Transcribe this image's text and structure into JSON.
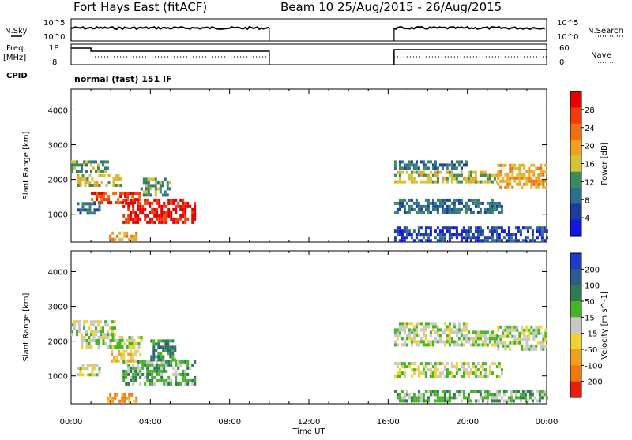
{
  "header": {
    "station": "Fort Hays East (fitACF)",
    "beam_date": "Beam 10 25/Aug/2015 - 26/Aug/2015"
  },
  "status_panels": {
    "nsky_label": "N.Sky",
    "nsky_ticks": [
      "10^5",
      "10^0"
    ],
    "nsearch_label": "N.Search",
    "nsearch_ticks": [
      "10^5",
      "10^0"
    ],
    "freq_label": "Freq.",
    "freq_unit": "[MHz]",
    "freq_ticks": [
      "18",
      "8"
    ],
    "nave_label": "Nave",
    "nave_ticks": [
      "60",
      "0"
    ],
    "cpid_label": "CPID",
    "cpid_text": "normal (fast) 151 IF"
  },
  "colors": {
    "power_scale": [
      "#1414e6",
      "#1e3c9a",
      "#2f6e8f",
      "#3c8c5a",
      "#d4c23a",
      "#f0a01e",
      "#f06e14",
      "#f03c0a",
      "#e60000"
    ],
    "velocity_scale": [
      "#1e3cc8",
      "#2f5a8c",
      "#2f7a50",
      "#46b428",
      "#c8c8c8",
      "#f0d232",
      "#f0a01e",
      "#f07814",
      "#e61e0a"
    ]
  },
  "chart_data": [
    {
      "type": "heatmap",
      "name": "power",
      "ylabel": "Slant Range [km]",
      "ylim": [
        200,
        4600
      ],
      "yticks": [
        1000,
        2000,
        3000,
        4000
      ],
      "colorbar_label": "Power [dB]",
      "colorbar_ticks": [
        "4",
        "8",
        "12",
        "16",
        "20",
        "24",
        "28"
      ],
      "regions": [
        {
          "t0": 0.0,
          "t1": 1.8,
          "r0": 2200,
          "r1": 2550,
          "level": 3
        },
        {
          "t0": 0.3,
          "t1": 2.5,
          "r0": 1800,
          "r1": 2150,
          "level": 4
        },
        {
          "t0": 1.0,
          "t1": 3.6,
          "r0": 1350,
          "r1": 1650,
          "level": 7
        },
        {
          "t0": 0.3,
          "t1": 1.4,
          "r0": 1000,
          "r1": 1350,
          "level": 2
        },
        {
          "t0": 2.6,
          "t1": 6.3,
          "r0": 800,
          "r1": 1450,
          "level": 8
        },
        {
          "t0": 3.5,
          "t1": 5.0,
          "r0": 1550,
          "r1": 2050,
          "level": 3
        },
        {
          "t0": 1.8,
          "t1": 3.3,
          "r0": 300,
          "r1": 500,
          "level": 5
        },
        {
          "t0": 16.3,
          "t1": 21.5,
          "r0": 1900,
          "r1": 2250,
          "level": 4
        },
        {
          "t0": 16.3,
          "t1": 20.0,
          "r0": 2350,
          "r1": 2550,
          "level": 2
        },
        {
          "t0": 21.5,
          "t1": 24.0,
          "r0": 1800,
          "r1": 2450,
          "level": 5
        },
        {
          "t0": 16.3,
          "t1": 21.8,
          "r0": 1000,
          "r1": 1450,
          "level": 2
        },
        {
          "t0": 16.3,
          "t1": 24.0,
          "r0": 250,
          "r1": 650,
          "level": 1
        }
      ]
    },
    {
      "type": "heatmap",
      "name": "velocity",
      "ylabel": "Slant Range [km]",
      "ylim": [
        200,
        4600
      ],
      "yticks": [
        1000,
        2000,
        3000,
        4000
      ],
      "colorbar_label": "Velocity [m s^-1]",
      "colorbar_ticks": [
        "200",
        "100",
        "50",
        "15",
        "-15",
        "-50",
        "-100",
        "-200"
      ],
      "regions": [
        {
          "t0": 0.0,
          "t1": 2.2,
          "r0": 2200,
          "r1": 2600,
          "level": 4
        },
        {
          "t0": 0.5,
          "t1": 3.5,
          "r0": 1800,
          "r1": 2150,
          "level": 4
        },
        {
          "t0": 0.3,
          "t1": 1.4,
          "r0": 1000,
          "r1": 1350,
          "level": 4
        },
        {
          "t0": 2.0,
          "t1": 3.5,
          "r0": 1400,
          "r1": 1750,
          "level": 5
        },
        {
          "t0": 2.6,
          "t1": 6.3,
          "r0": 800,
          "r1": 1450,
          "level": 3
        },
        {
          "t0": 4.0,
          "t1": 5.2,
          "r0": 1500,
          "r1": 2050,
          "level": 2
        },
        {
          "t0": 1.8,
          "t1": 3.3,
          "r0": 300,
          "r1": 500,
          "level": 6
        },
        {
          "t0": 16.3,
          "t1": 21.5,
          "r0": 1850,
          "r1": 2300,
          "level": 4
        },
        {
          "t0": 16.3,
          "t1": 20.0,
          "r0": 2350,
          "r1": 2550,
          "level": 4
        },
        {
          "t0": 21.5,
          "t1": 24.0,
          "r0": 1800,
          "r1": 2450,
          "level": 4
        },
        {
          "t0": 16.3,
          "t1": 21.8,
          "r0": 1000,
          "r1": 1400,
          "level": 4
        },
        {
          "t0": 16.3,
          "t1": 24.0,
          "r0": 250,
          "r1": 600,
          "level": 3
        }
      ]
    }
  ],
  "x_axis": {
    "label": "Time UT",
    "ticks": [
      "00:00",
      "04:00",
      "08:00",
      "12:00",
      "16:00",
      "20:00",
      "00:00"
    ],
    "range_hours": [
      0,
      24
    ]
  },
  "data_gap_hours": [
    10.0,
    16.3
  ]
}
